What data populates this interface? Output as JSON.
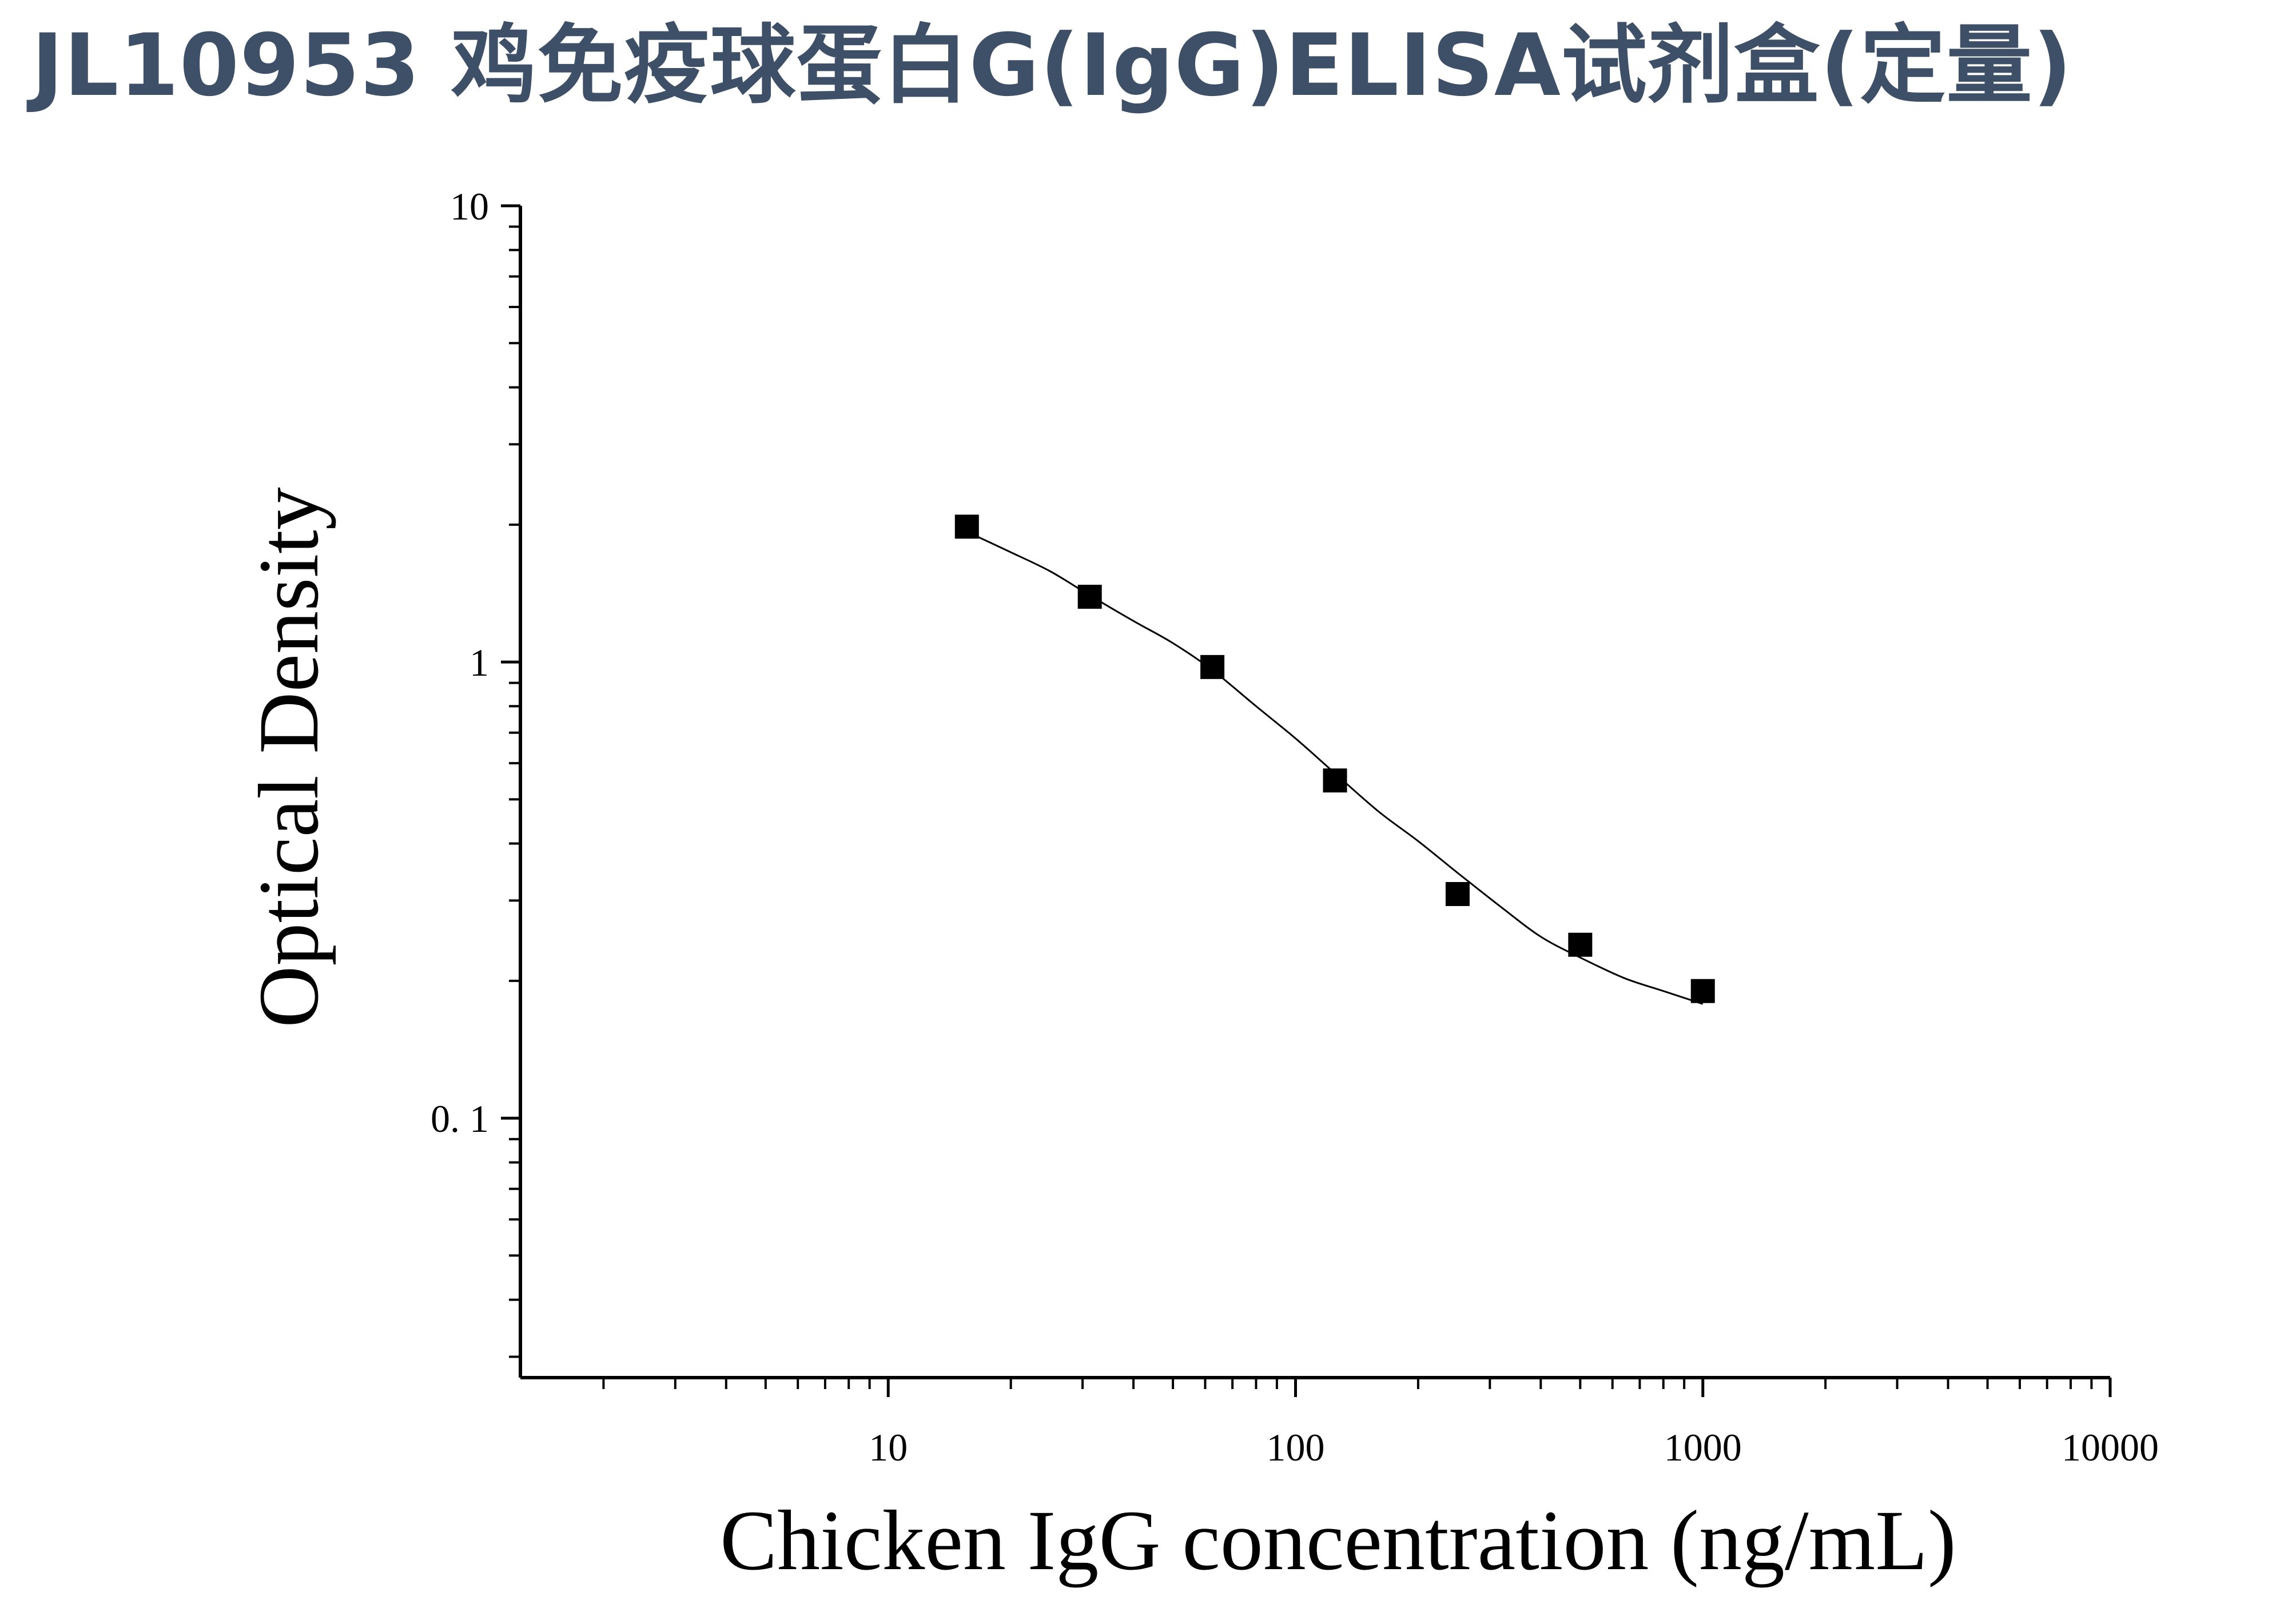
{
  "title": "JL10953 鸡免疫球蛋白G(IgG)ELISA试剂盒(定量)",
  "colors": {
    "title": "#3e4f68",
    "axis": "#000000",
    "marker": "#000000",
    "curve": "#000000"
  },
  "chart_data": {
    "type": "scatter",
    "xlabel": "Chicken IgG concentration (ng/mL)",
    "ylabel": "Optical Density",
    "xscale": "log",
    "yscale": "log",
    "xlim": [
      1.25,
      10000
    ],
    "ylim": [
      0.027,
      10
    ],
    "x_tick_labels": [
      "10",
      "100",
      "1000",
      "10000"
    ],
    "y_tick_labels": [
      "10",
      "1",
      "0. 1"
    ],
    "grid": false,
    "series": [
      {
        "marker": "square",
        "x": [
          15.6,
          31.25,
          62.5,
          125,
          250,
          500,
          1000
        ],
        "y": [
          1.98,
          1.39,
          0.975,
          0.55,
          0.31,
          0.24,
          0.19
        ]
      }
    ],
    "fit_curve": {
      "x": [
        15.6,
        20,
        25,
        31.25,
        40,
        50,
        62.5,
        80,
        100,
        125,
        160,
        200,
        250,
        320,
        400,
        500,
        640,
        800,
        1000
      ],
      "y": [
        1.93,
        1.74,
        1.58,
        1.4,
        1.23,
        1.1,
        0.96,
        0.8,
        0.68,
        0.57,
        0.47,
        0.405,
        0.345,
        0.29,
        0.25,
        0.225,
        0.203,
        0.19,
        0.178
      ]
    }
  }
}
